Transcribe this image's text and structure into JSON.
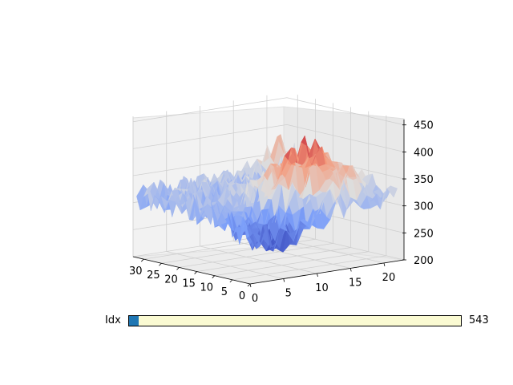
{
  "chart_data": {
    "type": "surface3d",
    "colormap": "coolwarm",
    "x_ticks": [
      0,
      5,
      10,
      15,
      20,
      25,
      30
    ],
    "y_ticks": [
      0,
      5,
      10,
      15,
      20
    ],
    "z_ticks": [
      200,
      250,
      300,
      350,
      400,
      450
    ],
    "xlim": [
      0,
      33
    ],
    "ylim": [
      0,
      23
    ],
    "zlim": [
      200,
      460
    ],
    "grid": true
  },
  "slider": {
    "label": "Idx",
    "value_text": "543",
    "fraction": 0.028,
    "fill_color": "#1f77b4",
    "track_color": "#fafad2"
  }
}
